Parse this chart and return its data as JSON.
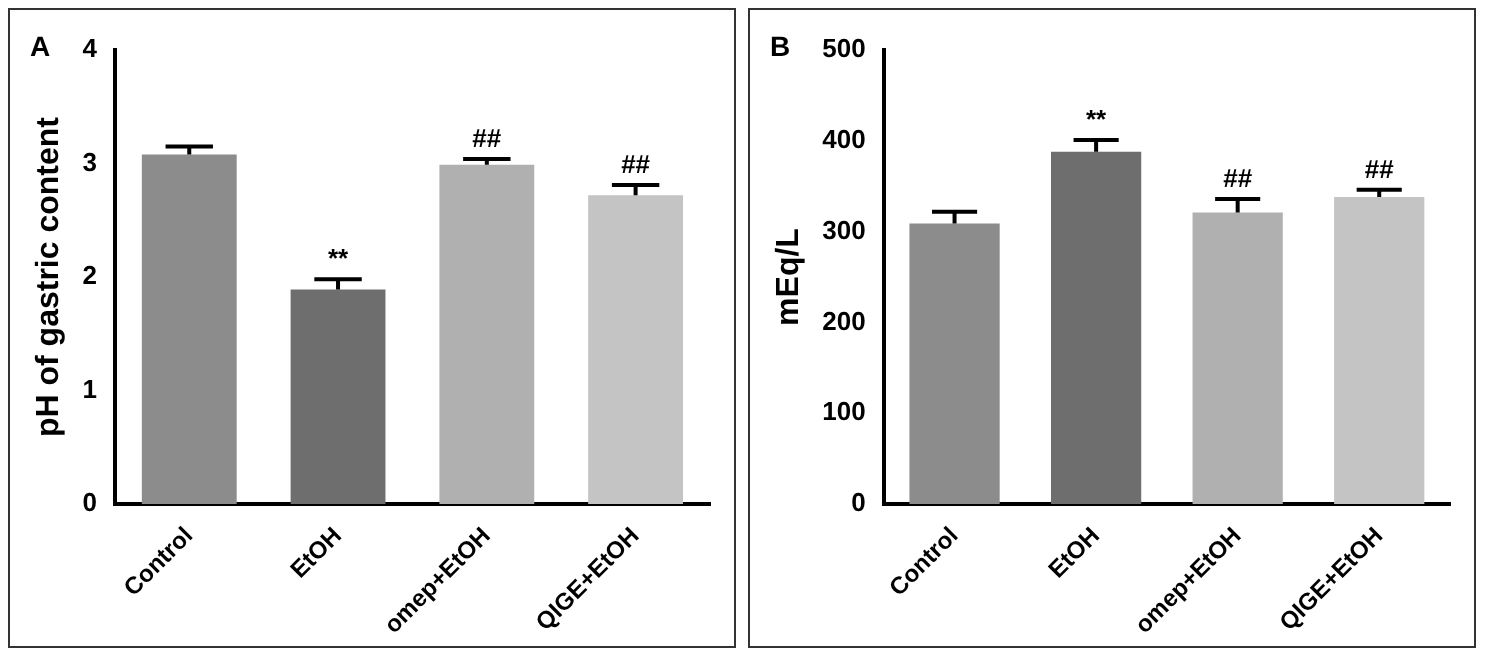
{
  "chart_data": [
    {
      "type": "bar",
      "title": "A",
      "ylabel": "pH of gastric content",
      "categories": [
        "Control",
        "EtOH",
        "omep+EtOH",
        "QIGE+EtOH"
      ],
      "values": [
        3.08,
        1.89,
        2.99,
        2.72
      ],
      "errors": [
        [
          3.08,
          3.15
        ],
        [
          1.89,
          1.98
        ],
        [
          2.99,
          3.04
        ],
        [
          2.72,
          2.81
        ]
      ],
      "colors": [
        "#8c8c8c",
        "#6e6e6e",
        "#b0b0b0",
        "#c4c4c4"
      ],
      "ylim": [
        0,
        4
      ],
      "yticks": [
        0,
        1,
        2,
        3,
        4
      ],
      "annotations": [
        {
          "text": "**",
          "x": "EtOH",
          "y": 1.98
        },
        {
          "text": "##",
          "x": "omep+EtOH",
          "y": 3.04
        },
        {
          "text": "##",
          "x": "QIGE+EtOH",
          "y": 2.81
        }
      ]
    },
    {
      "type": "bar",
      "title": "B",
      "ylabel": "mEq/L",
      "categories": [
        "Control",
        "EtOH",
        "omep+EtOH",
        "QIGE+EtOH"
      ],
      "values": [
        309,
        388,
        321,
        338
      ],
      "errors": [
        [
          309,
          322
        ],
        [
          388,
          401
        ],
        [
          321,
          336
        ],
        [
          338,
          346
        ]
      ],
      "colors": [
        "#8c8c8c",
        "#6e6e6e",
        "#b0b0b0",
        "#c4c4c4"
      ],
      "ylim": [
        0,
        500
      ],
      "yticks": [
        0,
        100,
        200,
        300,
        400,
        500
      ],
      "annotations": [
        {
          "text": "**",
          "x": "EtOH",
          "y": 401
        },
        {
          "text": "##",
          "x": "omep+EtOH",
          "y": 336
        },
        {
          "text": "##",
          "x": "QIGE+EtOH",
          "y": 346
        }
      ]
    }
  ]
}
